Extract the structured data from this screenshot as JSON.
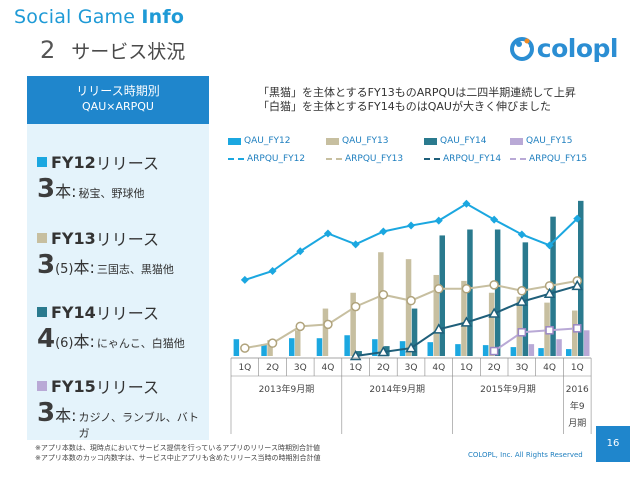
{
  "header": {
    "title_light": "Social Game ",
    "title_bold": "Info",
    "section_number": "2",
    "section_title": "サービス状況"
  },
  "logo": {
    "text": "colopl"
  },
  "left_panel": {
    "heading_line1": "リリース時期別",
    "heading_line2": "QAU×ARPQU",
    "groups": [
      {
        "fy": "FY12",
        "suffix": "リリース",
        "count": "3",
        "paren": "",
        "hon": "本:",
        "titles": "秘宝、野球他",
        "color": "#1ba7e0"
      },
      {
        "fy": "FY13",
        "suffix": "リリース",
        "count": "3",
        "paren": "(5)",
        "hon": "本:",
        "titles": "三国志、黒猫他",
        "color": "#c7bfa0"
      },
      {
        "fy": "FY14",
        "suffix": "リリース",
        "count": "4",
        "paren": "(6)",
        "hon": "本:",
        "titles": "にゃんこ、白猫他",
        "color": "#2a7a8e"
      },
      {
        "fy": "FY15",
        "suffix": "リリース",
        "count": "3",
        "paren": "",
        "hon": "本:",
        "titles": "カジノ、ランブル、バトガ",
        "color": "#b9a9d6"
      }
    ]
  },
  "description": {
    "line1": "「黒猫」を主体とするFY13ものARPQUは二四半期連続して上昇",
    "line2": "「白猫」を主体とするFY14ものはQAUが大きく伸びました"
  },
  "legend": {
    "items": [
      {
        "label": "QAU_FY12",
        "kind": "bar",
        "color": "#1ba7e0"
      },
      {
        "label": "QAU_FY13",
        "kind": "bar",
        "color": "#c7bfa0"
      },
      {
        "label": "QAU_FY14",
        "kind": "bar",
        "color": "#2a7a8e"
      },
      {
        "label": "QAU_FY15",
        "kind": "bar",
        "color": "#b9a9d6"
      },
      {
        "label": "ARPQU_FY12",
        "kind": "line",
        "color": "#1ba7e0"
      },
      {
        "label": "ARPQU_FY13",
        "kind": "line",
        "color": "#c7bfa0"
      },
      {
        "label": "ARPQU_FY14",
        "kind": "line",
        "color": "#1f5f7a"
      },
      {
        "label": "ARPQU_FY15",
        "kind": "line",
        "color": "#b9a9d6"
      }
    ]
  },
  "chart_data": {
    "type": "bar",
    "categories": [
      "1Q",
      "2Q",
      "3Q",
      "4Q",
      "1Q",
      "2Q",
      "3Q",
      "4Q",
      "1Q",
      "2Q",
      "3Q",
      "4Q",
      "1Q"
    ],
    "year_groups": [
      {
        "label": "2013年9月期",
        "span": [
          0,
          3
        ]
      },
      {
        "label": "2014年9月期",
        "span": [
          4,
          7
        ]
      },
      {
        "label": "2015年9月期",
        "span": [
          8,
          11
        ]
      },
      {
        "label": "2016年9月期",
        "span": [
          12,
          12
        ]
      }
    ],
    "series": [
      {
        "name": "QAU_FY12",
        "kind": "bar",
        "color": "#1ba7e0",
        "values": [
          17,
          12,
          18,
          18,
          21,
          17,
          15,
          14,
          12,
          11,
          9,
          8,
          7
        ]
      },
      {
        "name": "QAU_FY13",
        "kind": "bar",
        "color": "#c7bfa0",
        "values": [
          null,
          16,
          26,
          48,
          64,
          105,
          98,
          82,
          76,
          64,
          60,
          54,
          46
        ]
      },
      {
        "name": "QAU_FY14",
        "kind": "bar",
        "color": "#2a7a8e",
        "values": [
          null,
          null,
          null,
          null,
          5,
          10,
          48,
          122,
          128,
          128,
          115,
          141,
          157
        ]
      },
      {
        "name": "QAU_FY15",
        "kind": "bar",
        "color": "#b9a9d6",
        "values": [
          null,
          null,
          null,
          null,
          null,
          null,
          null,
          null,
          null,
          null,
          12,
          17,
          26
        ]
      },
      {
        "name": "ARPQU_FY12",
        "kind": "line",
        "color": "#1ba7e0",
        "values": [
          77,
          86,
          106,
          124,
          113,
          126,
          132,
          137,
          154,
          138,
          123,
          112,
          139
        ]
      },
      {
        "name": "ARPQU_FY13",
        "kind": "line",
        "color": "#c7bfa0",
        "values": [
          8,
          13,
          30,
          32,
          50,
          62,
          56,
          68,
          68,
          72,
          66,
          71,
          76
        ]
      },
      {
        "name": "ARPQU_FY14",
        "kind": "line",
        "color": "#1f5f7a",
        "values": [
          null,
          null,
          null,
          null,
          0,
          4,
          8,
          27,
          34,
          43,
          55,
          63,
          71
        ]
      },
      {
        "name": "ARPQU_FY15",
        "kind": "line",
        "color": "#b9a9d6",
        "values": [
          null,
          null,
          null,
          null,
          null,
          null,
          null,
          null,
          null,
          5,
          24,
          26,
          28
        ]
      }
    ],
    "ylim": [
      0,
      170
    ],
    "grid": false,
    "legend_position": "top"
  },
  "footer": {
    "note1": "※アプリ本数は、現時点においてサービス提供を行っているアプリのリリース時期別合計値",
    "note2": "※アプリ本数のカッコ内数字は、サービス中止アプリも含めたリリース当時の時期別合計値",
    "copyright": "COLOPL, Inc. All Rights Reserved",
    "page_number": "16"
  }
}
